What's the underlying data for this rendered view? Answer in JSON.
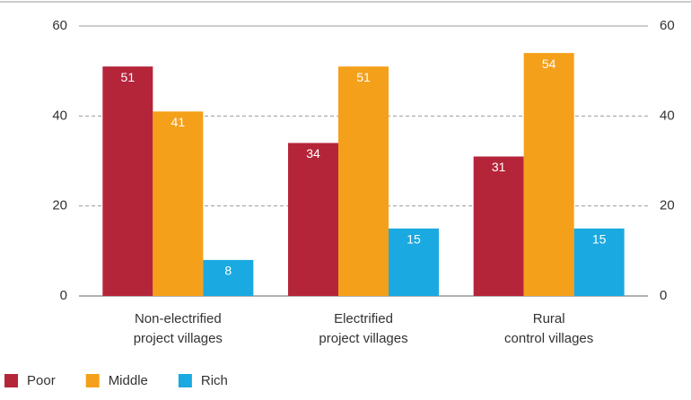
{
  "chart_data": {
    "type": "bar",
    "categories": [
      "Non-electrified\nproject villages",
      "Electrified\nproject villages",
      "Rural\ncontrol villages"
    ],
    "series": [
      {
        "name": "Poor",
        "color": "#b5253a",
        "values": [
          51,
          34,
          31
        ]
      },
      {
        "name": "Middle",
        "color": "#f5a01a",
        "values": [
          41,
          51,
          54
        ]
      },
      {
        "name": "Rich",
        "color": "#1aa9e0",
        "values": [
          8,
          15,
          15
        ]
      }
    ],
    "ylim": [
      0,
      60
    ],
    "yticks": [
      0,
      20,
      40,
      60
    ],
    "y2lim": [
      0,
      60
    ],
    "y2ticks": [
      0,
      20,
      40,
      60
    ],
    "grid": true,
    "legend": "bottom-left"
  }
}
